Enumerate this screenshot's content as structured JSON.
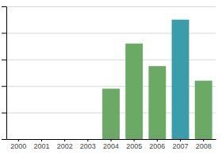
{
  "chart_data": {
    "type": "bar",
    "categories": [
      "2000",
      "2001",
      "2002",
      "2003",
      "2004",
      "2005",
      "2006",
      "2007",
      "2008"
    ],
    "values": [
      0,
      0,
      0,
      0,
      38,
      72,
      55,
      90,
      44
    ],
    "colors": [
      "#6aaa64",
      "#6aaa64",
      "#6aaa64",
      "#6aaa64",
      "#6aaa64",
      "#6aaa64",
      "#6aaa64",
      "#3a9eaa",
      "#6aaa64"
    ],
    "ylim": [
      0,
      100
    ],
    "yticks": [
      0,
      20,
      40,
      60,
      80,
      100
    ],
    "grid": true,
    "tick_labels": "x"
  }
}
